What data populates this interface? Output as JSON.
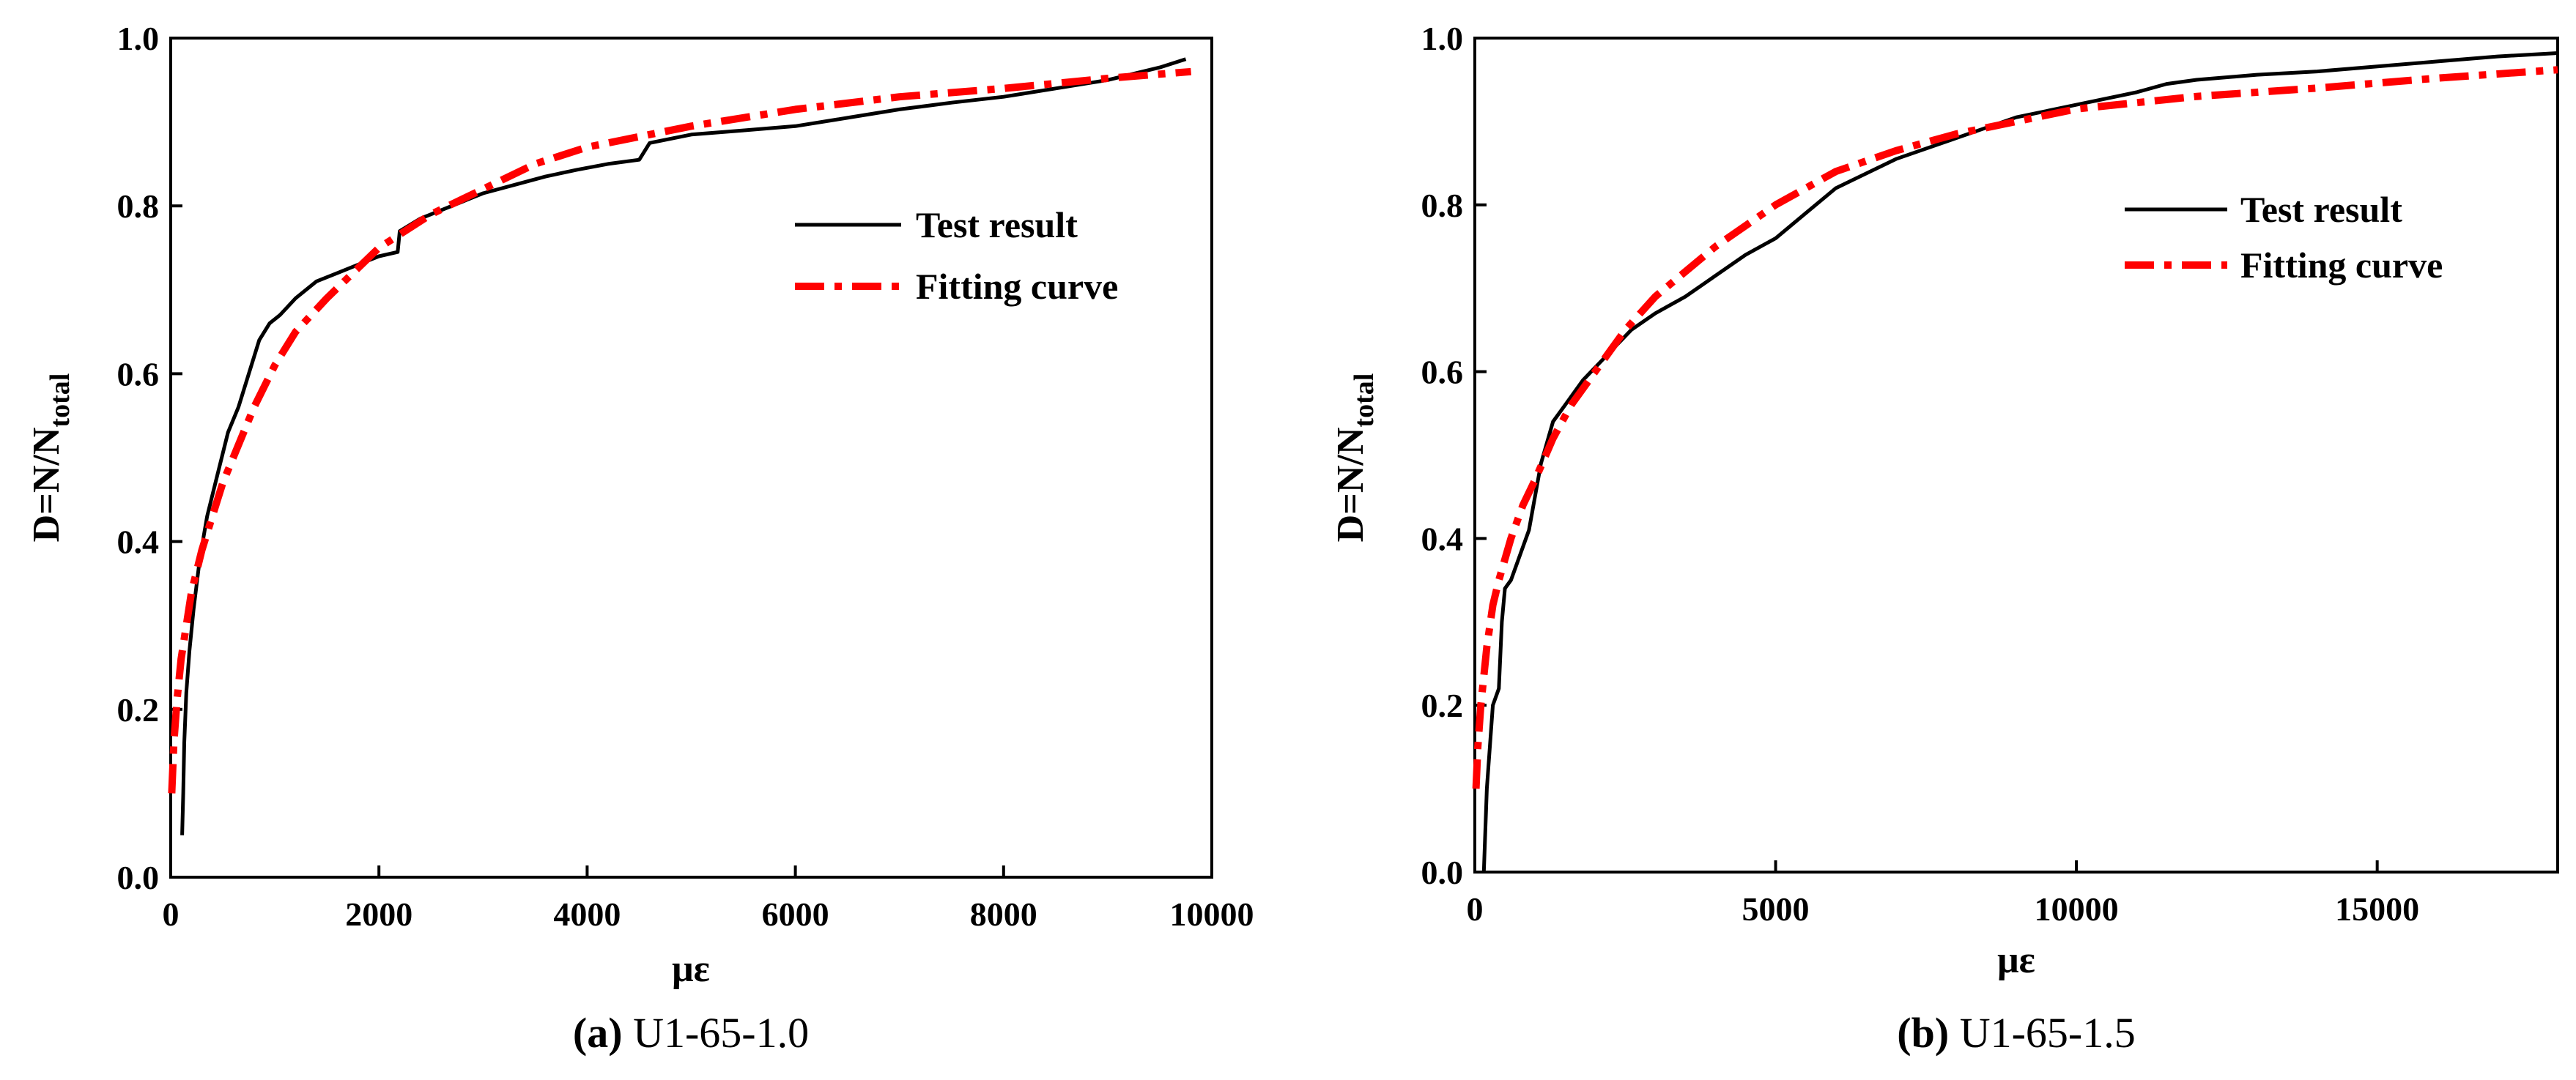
{
  "chart_data": [
    {
      "type": "line",
      "caption_letter": "(a)",
      "caption_text": " U1-65-1.0",
      "xlabel": "με",
      "ylabel_main": "D=N/N",
      "ylabel_sub": "total",
      "xlim": [
        0,
        10000
      ],
      "ylim": [
        0,
        1.0
      ],
      "xticks": [
        0,
        2000,
        4000,
        6000,
        8000,
        10000
      ],
      "xtick_labels": [
        "0",
        "2000",
        "4000",
        "6000",
        "8000",
        "10000"
      ],
      "yticks": [
        0,
        0.2,
        0.4,
        0.6,
        0.8,
        1.0
      ],
      "ytick_labels": [
        "0.0",
        "0.2",
        "0.4",
        "0.6",
        "0.8",
        "1.0"
      ],
      "legend_position": "upper-right",
      "series": [
        {
          "name": "Test result",
          "color": "#000000",
          "style": "solid",
          "x": [
            110,
            120,
            130,
            150,
            180,
            220,
            280,
            350,
            450,
            550,
            650,
            750,
            850,
            950,
            1050,
            1200,
            1400,
            1600,
            1800,
            2000,
            2180,
            2200,
            2400,
            2600,
            2800,
            3000,
            3300,
            3600,
            3900,
            4200,
            4500,
            4600,
            5000,
            5500,
            6000,
            6500,
            7000,
            7500,
            8000,
            8500,
            9000,
            9500,
            9750
          ],
          "y": [
            0.05,
            0.1,
            0.16,
            0.22,
            0.27,
            0.32,
            0.38,
            0.43,
            0.48,
            0.53,
            0.56,
            0.6,
            0.64,
            0.66,
            0.67,
            0.69,
            0.71,
            0.72,
            0.73,
            0.74,
            0.745,
            0.77,
            0.785,
            0.795,
            0.805,
            0.815,
            0.825,
            0.835,
            0.843,
            0.85,
            0.855,
            0.875,
            0.885,
            0.89,
            0.895,
            0.905,
            0.915,
            0.923,
            0.93,
            0.94,
            0.95,
            0.965,
            0.975
          ]
        },
        {
          "name": "Fitting curve",
          "color": "#ff0000",
          "style": "dashdot",
          "x": [
            10,
            30,
            60,
            100,
            150,
            200,
            300,
            400,
            500,
            600,
            800,
            1000,
            1200,
            1500,
            2000,
            2500,
            3000,
            3500,
            4000,
            5000,
            6000,
            7000,
            8000,
            9000,
            9800
          ],
          "y": [
            0.1,
            0.16,
            0.21,
            0.26,
            0.3,
            0.34,
            0.39,
            0.43,
            0.47,
            0.5,
            0.56,
            0.61,
            0.65,
            0.69,
            0.75,
            0.79,
            0.82,
            0.85,
            0.87,
            0.895,
            0.915,
            0.93,
            0.94,
            0.952,
            0.96
          ]
        }
      ]
    },
    {
      "type": "line",
      "caption_letter": "(b)",
      "caption_text": " U1-65-1.5",
      "xlabel": "με",
      "ylabel_main": "D=N/N",
      "ylabel_sub": "total",
      "xlim": [
        0,
        18000
      ],
      "ylim": [
        0,
        1.0
      ],
      "xticks": [
        0,
        5000,
        10000,
        15000
      ],
      "xtick_labels": [
        "0",
        "5000",
        "10000",
        "15000"
      ],
      "yticks": [
        0,
        0.2,
        0.4,
        0.6,
        0.8,
        1.0
      ],
      "ytick_labels": [
        "0.0",
        "0.2",
        "0.4",
        "0.6",
        "0.8",
        "1.0"
      ],
      "legend_position": "upper-right",
      "series": [
        {
          "name": "Test result",
          "color": "#000000",
          "style": "solid",
          "x": [
            150,
            200,
            250,
            300,
            350,
            400,
            450,
            500,
            550,
            600,
            700,
            800,
            900,
            1000,
            1100,
            1300,
            1500,
            1800,
            2200,
            2600,
            3000,
            3500,
            4000,
            4500,
            5000,
            5500,
            6000,
            7000,
            8000,
            9000,
            10000,
            11000,
            11500,
            12000,
            13000,
            14000,
            15000,
            16000,
            17000,
            18000
          ],
          "y": [
            0.0,
            0.1,
            0.15,
            0.2,
            0.21,
            0.22,
            0.3,
            0.34,
            0.345,
            0.35,
            0.37,
            0.39,
            0.41,
            0.45,
            0.49,
            0.54,
            0.56,
            0.59,
            0.62,
            0.65,
            0.67,
            0.69,
            0.715,
            0.74,
            0.76,
            0.79,
            0.82,
            0.855,
            0.88,
            0.905,
            0.92,
            0.935,
            0.945,
            0.95,
            0.956,
            0.96,
            0.966,
            0.972,
            0.978,
            0.982
          ]
        },
        {
          "name": "Fitting curve",
          "color": "#ff0000",
          "style": "dashdot",
          "x": [
            20,
            50,
            100,
            200,
            300,
            400,
            600,
            800,
            1000,
            1300,
            1600,
            2000,
            2500,
            3000,
            4000,
            5000,
            6000,
            7000,
            8000,
            9000,
            10000,
            12000,
            14000,
            16000,
            18000
          ],
          "y": [
            0.1,
            0.15,
            0.2,
            0.27,
            0.32,
            0.35,
            0.4,
            0.44,
            0.47,
            0.52,
            0.56,
            0.6,
            0.65,
            0.69,
            0.75,
            0.8,
            0.84,
            0.865,
            0.885,
            0.9,
            0.915,
            0.93,
            0.94,
            0.952,
            0.962
          ]
        }
      ]
    }
  ]
}
